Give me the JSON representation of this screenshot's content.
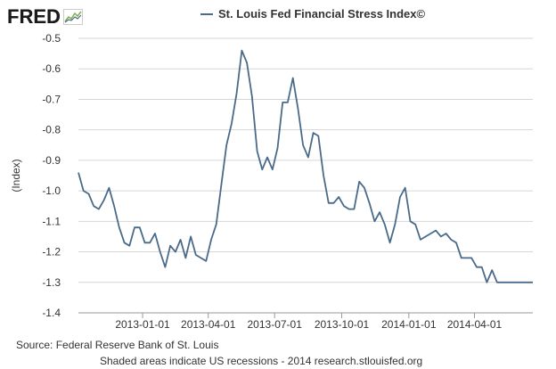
{
  "brand": {
    "name": "FRED"
  },
  "colors": {
    "series": "#4a6a8a",
    "grid": "#d6d6d6",
    "text": "#333333",
    "axis": "#999999"
  },
  "footer": {
    "source": "Source: Federal Reserve Bank of St. Louis",
    "note": "Shaded areas indicate US recessions - 2014 research.stlouisfed.org"
  },
  "chart_data": {
    "type": "line",
    "title": "",
    "xlabel": "",
    "ylabel": "(Index)",
    "ylim": [
      -1.4,
      -0.5
    ],
    "yticks": [
      -0.5,
      -0.6,
      -0.7,
      -0.8,
      -0.9,
      -1.0,
      -1.1,
      -1.2,
      -1.3,
      -1.4
    ],
    "ytick_labels": [
      "-0.5",
      "-0.6",
      "-0.7",
      "-0.8",
      "-0.9",
      "-1.0",
      "-1.1",
      "-1.2",
      "-1.3",
      "-1.4"
    ],
    "xlim": [
      "2012-10-05",
      "2014-06-20"
    ],
    "xticks": [
      "2013-01-01",
      "2013-04-01",
      "2013-07-01",
      "2013-10-01",
      "2014-01-01",
      "2014-04-01"
    ],
    "grid": true,
    "legend_position": "top",
    "series": [
      {
        "name": "St. Louis Fed Financial Stress Index©",
        "x": [
          "2012-10-05",
          "2012-10-12",
          "2012-10-19",
          "2012-10-26",
          "2012-11-02",
          "2012-11-09",
          "2012-11-16",
          "2012-11-23",
          "2012-11-30",
          "2012-12-07",
          "2012-12-14",
          "2012-12-21",
          "2012-12-28",
          "2013-01-04",
          "2013-01-11",
          "2013-01-18",
          "2013-01-25",
          "2013-02-01",
          "2013-02-08",
          "2013-02-15",
          "2013-02-22",
          "2013-03-01",
          "2013-03-08",
          "2013-03-15",
          "2013-03-22",
          "2013-03-29",
          "2013-04-05",
          "2013-04-12",
          "2013-04-19",
          "2013-04-26",
          "2013-05-03",
          "2013-05-10",
          "2013-05-17",
          "2013-05-24",
          "2013-05-31",
          "2013-06-07",
          "2013-06-14",
          "2013-06-21",
          "2013-06-28",
          "2013-07-05",
          "2013-07-12",
          "2013-07-19",
          "2013-07-26",
          "2013-08-02",
          "2013-08-09",
          "2013-08-16",
          "2013-08-23",
          "2013-08-30",
          "2013-09-06",
          "2013-09-13",
          "2013-09-20",
          "2013-09-27",
          "2013-10-04",
          "2013-10-11",
          "2013-10-18",
          "2013-10-25",
          "2013-11-01",
          "2013-11-08",
          "2013-11-15",
          "2013-11-22",
          "2013-11-29",
          "2013-12-06",
          "2013-12-13",
          "2013-12-20",
          "2013-12-27",
          "2014-01-03",
          "2014-01-10",
          "2014-01-17",
          "2014-01-24",
          "2014-01-31",
          "2014-02-07",
          "2014-02-14",
          "2014-02-21",
          "2014-02-28",
          "2014-03-07",
          "2014-03-14",
          "2014-03-21",
          "2014-03-28",
          "2014-04-04",
          "2014-04-11",
          "2014-04-18",
          "2014-04-25",
          "2014-05-02",
          "2014-05-09",
          "2014-05-16",
          "2014-05-23",
          "2014-05-30",
          "2014-06-06",
          "2014-06-13",
          "2014-06-20"
        ],
        "values": [
          -0.94,
          -1.0,
          -1.01,
          -1.05,
          -1.06,
          -1.03,
          -0.99,
          -1.05,
          -1.12,
          -1.17,
          -1.18,
          -1.12,
          -1.12,
          -1.17,
          -1.17,
          -1.14,
          -1.2,
          -1.25,
          -1.18,
          -1.2,
          -1.16,
          -1.22,
          -1.15,
          -1.21,
          -1.22,
          -1.23,
          -1.16,
          -1.11,
          -0.98,
          -0.85,
          -0.78,
          -0.68,
          -0.54,
          -0.58,
          -0.69,
          -0.87,
          -0.93,
          -0.89,
          -0.93,
          -0.86,
          -0.71,
          -0.71,
          -0.63,
          -0.73,
          -0.85,
          -0.89,
          -0.81,
          -0.82,
          -0.95,
          -1.04,
          -1.04,
          -1.02,
          -1.05,
          -1.06,
          -1.06,
          -0.97,
          -0.99,
          -1.04,
          -1.1,
          -1.07,
          -1.11,
          -1.17,
          -1.11,
          -1.02,
          -0.99,
          -1.1,
          -1.11,
          -1.16,
          -1.15,
          -1.14,
          -1.13,
          -1.15,
          -1.14,
          -1.16,
          -1.17,
          -1.22,
          -1.22,
          -1.22,
          -1.25,
          -1.25,
          -1.3,
          -1.26,
          -1.3,
          -1.3,
          -1.3,
          -1.3,
          -1.3,
          -1.3,
          -1.3,
          -1.3
        ]
      }
    ]
  }
}
